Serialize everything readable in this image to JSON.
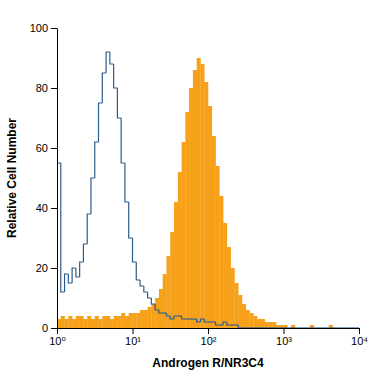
{
  "chart_data": {
    "type": "histogram",
    "x_label": "Androgen R/NR3C4",
    "y_label": "Relative Cell Number",
    "log": "x",
    "xlim": [
      1,
      10000
    ],
    "ylim": [
      0,
      100
    ],
    "xticks": [
      {
        "value": 1,
        "label": "10⁰"
      },
      {
        "value": 10,
        "label": "10¹"
      },
      {
        "value": 100,
        "label": "10²"
      },
      {
        "value": 1000,
        "label": "10³"
      },
      {
        "value": 10000,
        "label": "10⁴"
      }
    ],
    "yticks": [
      0,
      20,
      40,
      60,
      80,
      100
    ],
    "bins": [
      1,
      1.122,
      1.259,
      1.413,
      1.585,
      1.778,
      1.995,
      2.239,
      2.512,
      2.818,
      3.162,
      3.548,
      3.981,
      4.467,
      5.012,
      5.623,
      6.31,
      7.079,
      7.943,
      8.913,
      10,
      11.22,
      12.59,
      14.13,
      15.85,
      17.78,
      19.95,
      22.39,
      25.12,
      28.18,
      31.62,
      35.48,
      39.81,
      44.67,
      50.12,
      56.23,
      63.1,
      70.79,
      79.43,
      89.13,
      100,
      112.2,
      125.9,
      141.3,
      158.5,
      177.8,
      199.5,
      223.9,
      251.2,
      281.8,
      316.2,
      354.8,
      398.1,
      446.7,
      501.2,
      562.3,
      631,
      707.9,
      794.3,
      891.3,
      1000,
      1122,
      1259,
      1413,
      1585,
      1778,
      1995,
      2239,
      2512,
      2818,
      3162,
      3548,
      3981,
      4467,
      5012,
      5623,
      6310,
      7079,
      7943,
      8913,
      10000
    ],
    "series": [
      {
        "type": "step",
        "color": "#2b5d8c",
        "values": [
          55,
          12,
          18,
          15,
          20,
          17,
          22,
          28,
          38,
          50,
          62,
          75,
          85,
          92,
          88,
          80,
          70,
          55,
          42,
          30,
          22,
          16,
          14,
          12,
          10,
          8,
          6,
          5,
          5,
          4,
          3,
          4,
          4,
          3,
          3,
          3,
          3,
          2,
          3,
          2,
          2,
          2,
          1,
          1,
          2,
          1,
          1,
          1,
          0,
          0,
          0,
          0,
          0,
          0,
          0,
          0,
          0,
          0,
          0,
          0,
          0,
          0,
          0,
          0,
          0,
          0,
          0,
          0,
          0,
          0,
          0,
          0,
          0,
          0,
          0,
          0,
          0,
          0,
          0,
          0
        ]
      },
      {
        "type": "bar",
        "color": "#f7a11a",
        "values": [
          3,
          4,
          3,
          4,
          3,
          4,
          4,
          3,
          4,
          3,
          4,
          3,
          4,
          4,
          3,
          4,
          4,
          5,
          4,
          5,
          5,
          5,
          6,
          6,
          7,
          8,
          10,
          13,
          18,
          24,
          32,
          42,
          52,
          62,
          72,
          80,
          86,
          90,
          88,
          82,
          74,
          64,
          54,
          44,
          35,
          27,
          20,
          15,
          11,
          8,
          6,
          5,
          4,
          3,
          3,
          2,
          2,
          2,
          1,
          1,
          1,
          0,
          1,
          0,
          0,
          0,
          0,
          1,
          0,
          0,
          0,
          0,
          1,
          0,
          0,
          0,
          0,
          0,
          0,
          0
        ]
      }
    ]
  }
}
